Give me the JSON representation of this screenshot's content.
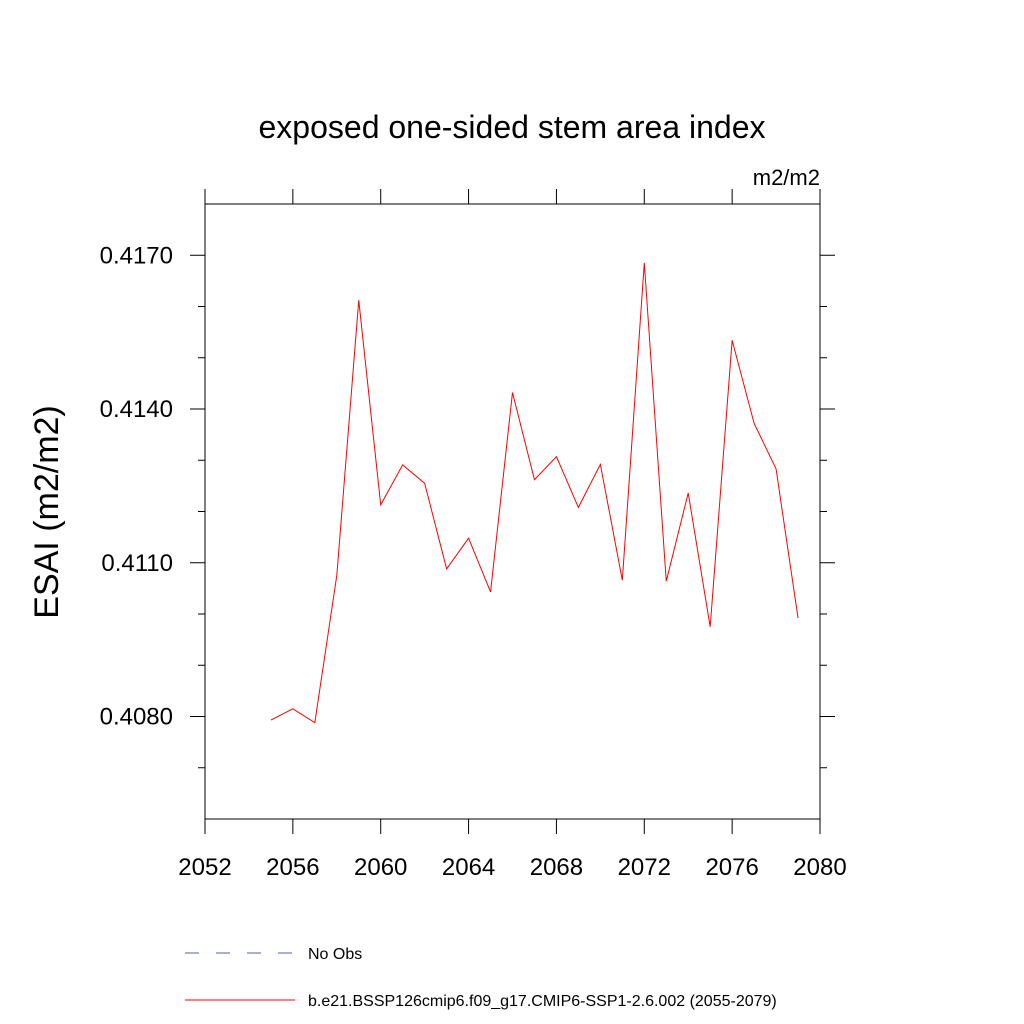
{
  "chart_data": {
    "type": "line",
    "title": "exposed one-sided stem area index",
    "units": "m2/m2",
    "xlabel": "",
    "ylabel": "ESAI  (m2/m2)",
    "xlim": [
      2052,
      2080
    ],
    "ylim": [
      0.406,
      0.418
    ],
    "x_ticks": [
      2052,
      2056,
      2060,
      2064,
      2068,
      2072,
      2076,
      2080
    ],
    "x_tick_labels": [
      "2052",
      "2056",
      "2060",
      "2064",
      "2068",
      "2072",
      "2076",
      "2080"
    ],
    "y_ticks": [
      0.408,
      0.411,
      0.414,
      0.417
    ],
    "y_tick_labels": [
      "0.4080",
      "0.4110",
      "0.4140",
      "0.4170"
    ],
    "y_minor_step": 0.001,
    "x_minor_step": 4,
    "grid": false,
    "legend_position": "bottom",
    "series": [
      {
        "name": "No Obs",
        "color": "#5a5ab4",
        "style": "dashed",
        "x": [],
        "values": []
      },
      {
        "name": "b.e21.BSSP126cmip6.f09_g17.CMIP6-SSP1-2.6.002 (2055-2079)",
        "color": "#ff0000",
        "style": "solid",
        "x": [
          2055,
          2056,
          2057,
          2058,
          2059,
          2060,
          2061,
          2062,
          2063,
          2064,
          2065,
          2066,
          2067,
          2068,
          2069,
          2070,
          2071,
          2072,
          2073,
          2074,
          2075,
          2076,
          2077,
          2078,
          2079
        ],
        "values": [
          0.40793,
          0.40815,
          0.40788,
          0.41075,
          0.41612,
          0.41213,
          0.41291,
          0.41255,
          0.41088,
          0.41148,
          0.41043,
          0.41432,
          0.41262,
          0.41307,
          0.41208,
          0.41292,
          0.41066,
          0.41685,
          0.41064,
          0.41236,
          0.40975,
          0.41534,
          0.41372,
          0.41283,
          0.40992
        ]
      }
    ]
  }
}
